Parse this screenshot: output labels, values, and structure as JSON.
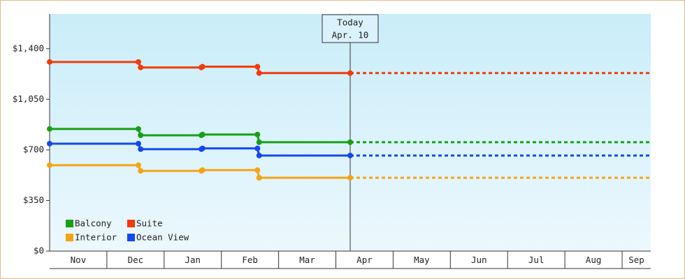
{
  "chart_data": {
    "type": "line",
    "categories": [
      "Nov",
      "Dec",
      "Jan",
      "Feb",
      "Mar",
      "Apr",
      "May",
      "Jun",
      "Jul",
      "Aug",
      "Sep"
    ],
    "xlim": [
      0,
      10.5
    ],
    "ylim": [
      0,
      1640
    ],
    "yticks": [
      {
        "value": 0,
        "label": "$0"
      },
      {
        "value": 350,
        "label": "$350"
      },
      {
        "value": 700,
        "label": "$700"
      },
      {
        "value": 1050,
        "label": "$1,050"
      },
      {
        "value": 1400,
        "label": "$1,400"
      }
    ],
    "today_x": 5.25,
    "today_label": "Today",
    "today_date": "Apr. 10",
    "legend": "bottom-left",
    "series": [
      {
        "name": "Balcony",
        "color": "#17a017",
        "x": [
          0,
          1.55,
          1.59,
          2.65,
          2.67,
          3.63,
          3.66,
          5.25
        ],
        "values": [
          845,
          845,
          801,
          801,
          806,
          806,
          753,
          753
        ]
      },
      {
        "name": "Suite",
        "color": "#f03c0c",
        "x": [
          0,
          1.55,
          1.59,
          2.65,
          2.67,
          3.63,
          3.66,
          5.25
        ],
        "values": [
          1308,
          1308,
          1270,
          1270,
          1275,
          1275,
          1231,
          1231
        ]
      },
      {
        "name": "Interior",
        "color": "#f5a316",
        "x": [
          0,
          1.55,
          1.59,
          2.65,
          2.67,
          3.63,
          3.66,
          5.25
        ],
        "values": [
          594,
          594,
          555,
          555,
          560,
          560,
          507,
          507
        ]
      },
      {
        "name": "Ocean View",
        "color": "#1448f0",
        "x": [
          0,
          1.55,
          1.59,
          2.65,
          2.67,
          3.63,
          3.66,
          5.25
        ],
        "values": [
          743,
          743,
          705,
          705,
          710,
          710,
          661,
          661
        ]
      }
    ]
  }
}
